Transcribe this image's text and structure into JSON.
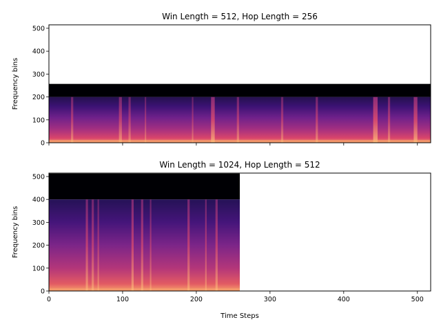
{
  "figure": {
    "background": "#ffffff"
  },
  "chart_data": [
    {
      "type": "heatmap",
      "title": "Win Length = 512, Hop Length = 256",
      "ylabel": "Frequency bins",
      "xlabel": "",
      "xlim": [
        0,
        518
      ],
      "ylim": [
        0,
        515
      ],
      "xticks": [
        0,
        100,
        200,
        300,
        400,
        500
      ],
      "yticks": [
        0,
        100,
        200,
        300,
        400,
        500
      ],
      "show_xtick_labels": false,
      "colormap": "magma",
      "data_extent": {
        "x": [
          0,
          518
        ],
        "y": [
          0,
          257
        ]
      },
      "dark_band_from_bin": 200,
      "tracks": [
        {
          "x": 30,
          "width": 3,
          "intensity": 0.55
        },
        {
          "x": 95,
          "width": 4,
          "intensity": 0.6
        },
        {
          "x": 108,
          "width": 3,
          "intensity": 0.5
        },
        {
          "x": 130,
          "width": 2,
          "intensity": 0.45
        },
        {
          "x": 194,
          "width": 2,
          "intensity": 0.45
        },
        {
          "x": 220,
          "width": 5,
          "intensity": 0.75
        },
        {
          "x": 255,
          "width": 3,
          "intensity": 0.55
        },
        {
          "x": 315,
          "width": 3,
          "intensity": 0.5
        },
        {
          "x": 362,
          "width": 3,
          "intensity": 0.55
        },
        {
          "x": 440,
          "width": 6,
          "intensity": 0.8
        },
        {
          "x": 460,
          "width": 3,
          "intensity": 0.55
        },
        {
          "x": 495,
          "width": 5,
          "intensity": 0.75
        }
      ]
    },
    {
      "type": "heatmap",
      "title": "Win Length = 1024, Hop Length = 512",
      "ylabel": "Frequency bins",
      "xlabel": "Time Steps",
      "xlim": [
        0,
        518
      ],
      "ylim": [
        0,
        515
      ],
      "xticks": [
        0,
        100,
        200,
        300,
        400,
        500
      ],
      "yticks": [
        0,
        100,
        200,
        300,
        400,
        500
      ],
      "show_xtick_labels": true,
      "colormap": "magma",
      "data_extent": {
        "x": [
          0,
          259
        ],
        "y": [
          0,
          513
        ]
      },
      "dark_band_from_bin": 400,
      "tracks": [
        {
          "x": 50,
          "width": 3,
          "intensity": 0.6
        },
        {
          "x": 58,
          "width": 3,
          "intensity": 0.55
        },
        {
          "x": 66,
          "width": 2,
          "intensity": 0.5
        },
        {
          "x": 112,
          "width": 3,
          "intensity": 0.65
        },
        {
          "x": 125,
          "width": 3,
          "intensity": 0.6
        },
        {
          "x": 137,
          "width": 2,
          "intensity": 0.5
        },
        {
          "x": 188,
          "width": 3,
          "intensity": 0.6
        },
        {
          "x": 212,
          "width": 2,
          "intensity": 0.55
        },
        {
          "x": 226,
          "width": 3,
          "intensity": 0.6
        }
      ]
    }
  ]
}
